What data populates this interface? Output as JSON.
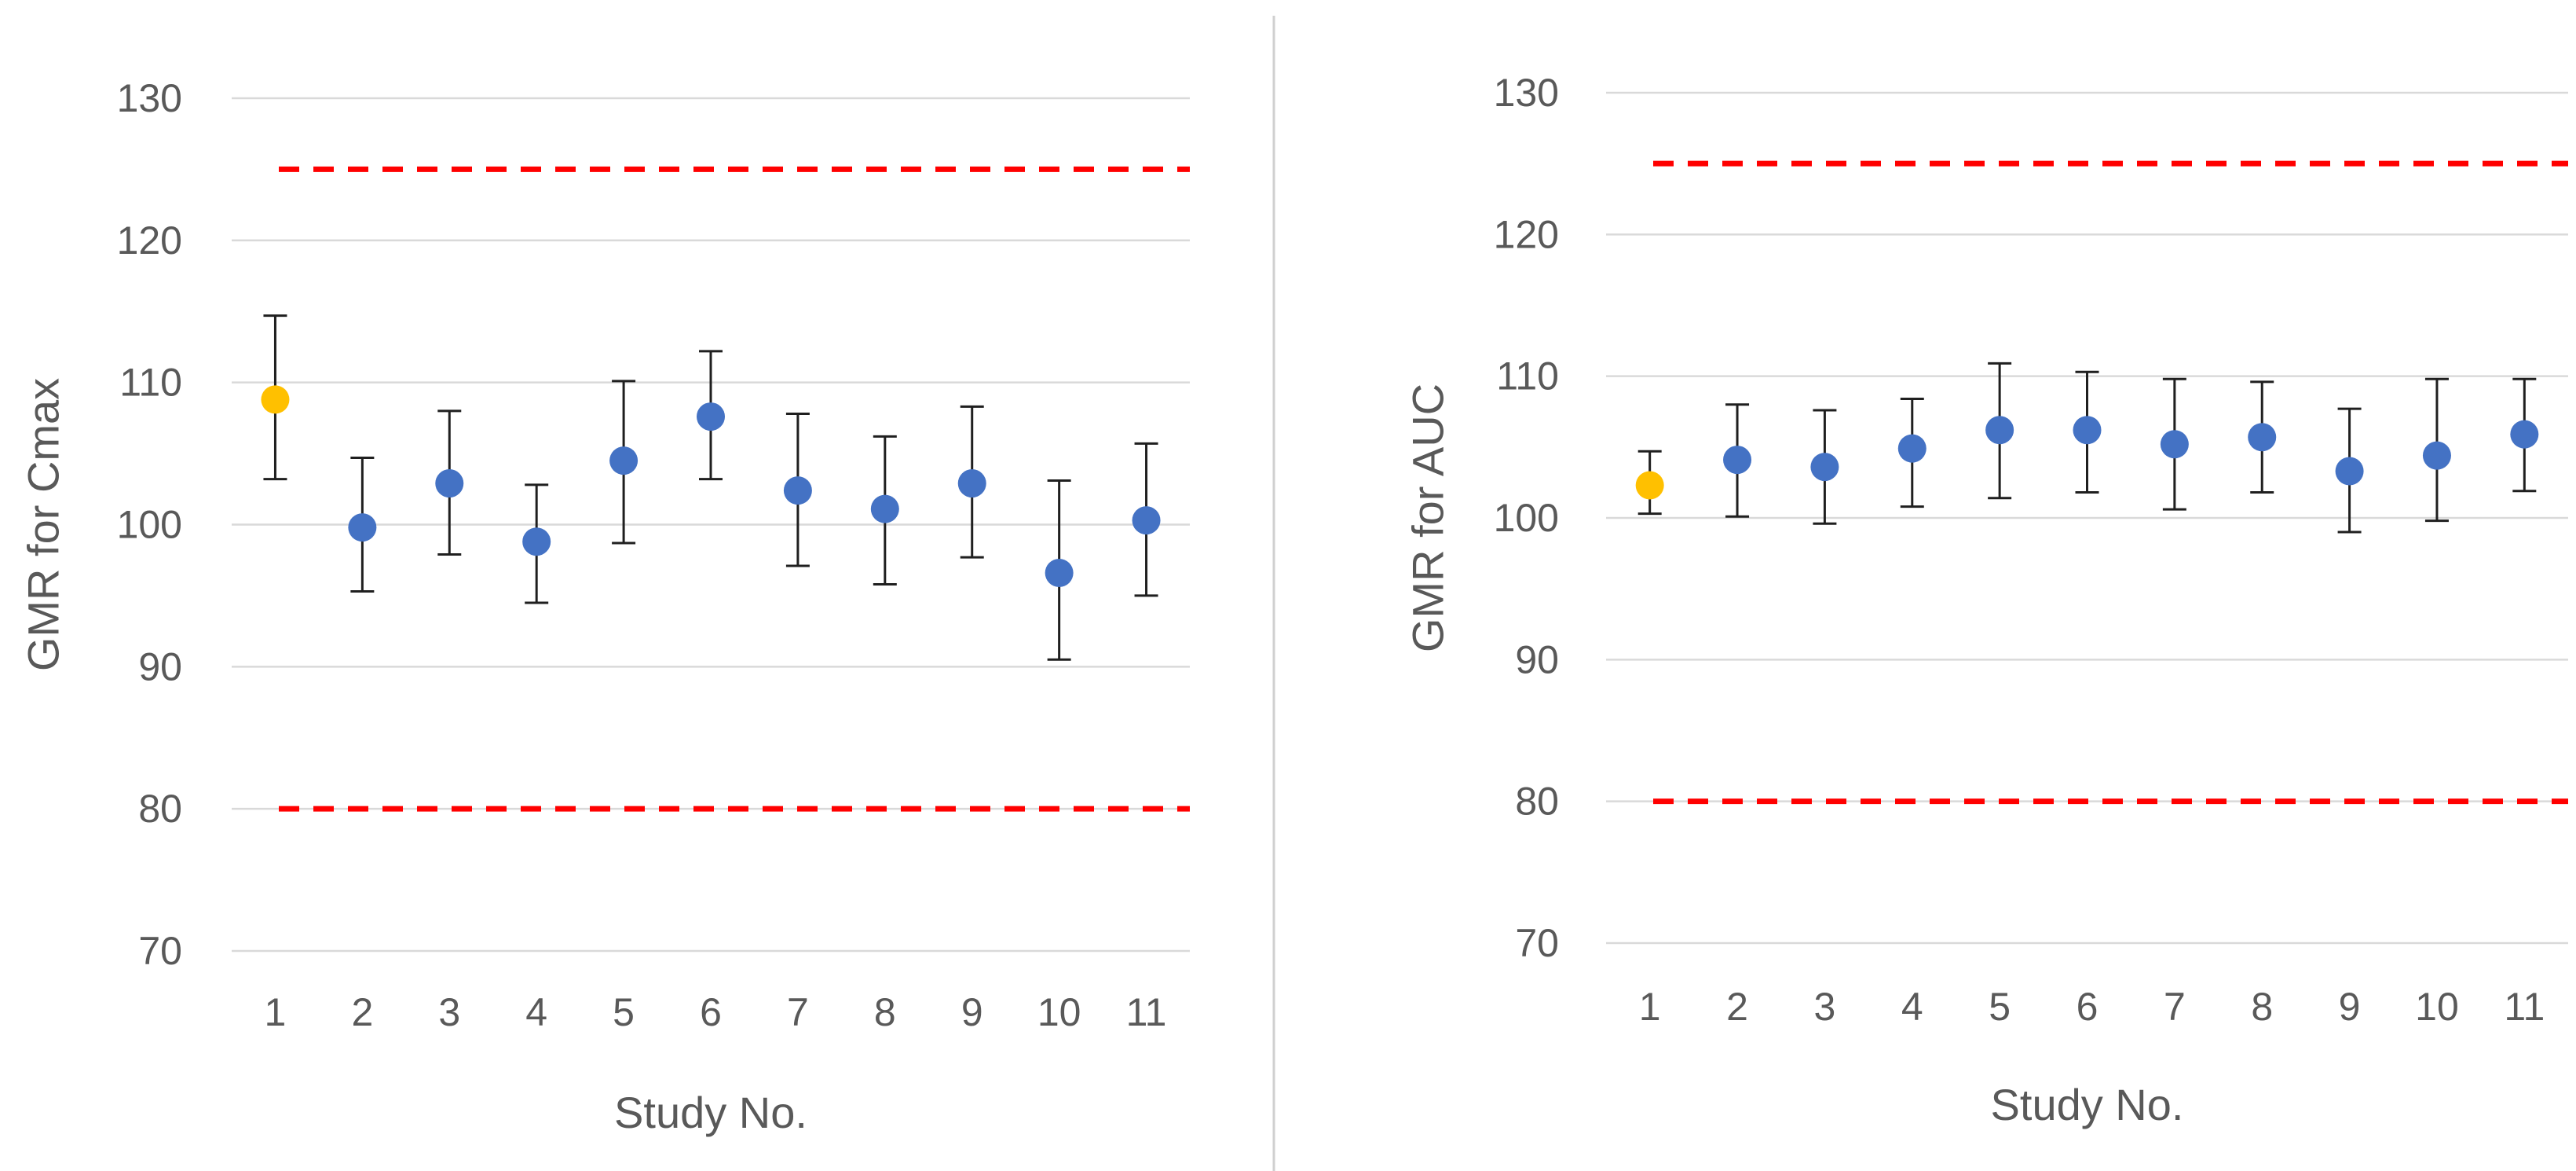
{
  "colors": {
    "reference_point": "#FFC000",
    "study_point": "#4472C4",
    "limit_line": "#FF0000",
    "gridline": "#D9D9D9",
    "error_bar": "#1F1F1F",
    "text": "#595959"
  },
  "chart_data": [
    {
      "type": "scatter",
      "title": "",
      "xlabel": "Study No.",
      "ylabel": "GMR for Cmax",
      "ylim": [
        70,
        130
      ],
      "yticks": [
        70,
        80,
        90,
        100,
        110,
        120,
        130
      ],
      "grid": true,
      "categories": [
        "1",
        "2",
        "3",
        "4",
        "5",
        "6",
        "7",
        "8",
        "9",
        "10",
        "11"
      ],
      "series": [
        {
          "name": "GMR",
          "values": [
            108.8,
            99.8,
            102.9,
            98.8,
            104.5,
            107.6,
            102.4,
            101.1,
            102.9,
            96.6,
            100.3
          ],
          "ci_lower": [
            103.2,
            95.3,
            97.9,
            94.5,
            98.7,
            103.2,
            97.1,
            95.8,
            97.7,
            90.5,
            95.0
          ],
          "ci_upper": [
            114.7,
            104.7,
            108.0,
            102.8,
            110.1,
            112.2,
            107.8,
            106.2,
            108.3,
            103.1,
            105.7
          ],
          "highlight_index": 0
        }
      ],
      "reference_lines": [
        80,
        125
      ]
    },
    {
      "type": "scatter",
      "title": "",
      "xlabel": "Study No.",
      "ylabel": "GMR for AUC",
      "ylim": [
        70,
        130
      ],
      "yticks": [
        70,
        80,
        90,
        100,
        110,
        120,
        130
      ],
      "grid": true,
      "categories": [
        "1",
        "2",
        "3",
        "4",
        "5",
        "6",
        "7",
        "8",
        "9",
        "10",
        "11"
      ],
      "series": [
        {
          "name": "GMR",
          "values": [
            102.3,
            104.1,
            103.6,
            104.9,
            106.2,
            106.2,
            105.2,
            105.7,
            103.3,
            104.4,
            105.9
          ],
          "ci_lower": [
            100.3,
            100.1,
            99.6,
            100.8,
            101.4,
            101.8,
            100.6,
            101.8,
            99.0,
            99.8,
            101.9
          ],
          "ci_upper": [
            104.7,
            108.0,
            107.6,
            108.4,
            110.9,
            110.3,
            109.8,
            109.6,
            107.7,
            109.8,
            109.8
          ],
          "highlight_index": 0
        }
      ],
      "reference_lines": [
        80,
        125
      ]
    }
  ]
}
